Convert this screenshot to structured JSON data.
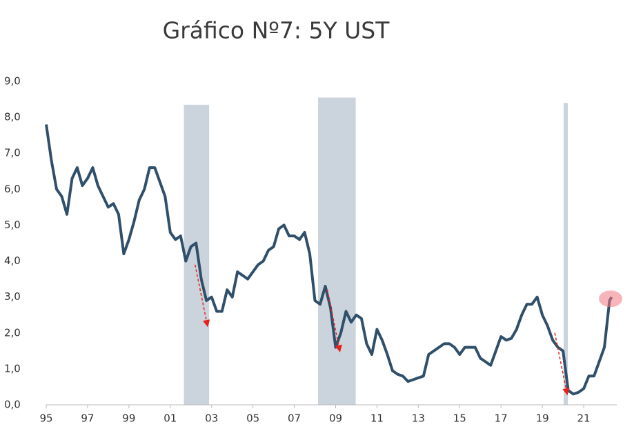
{
  "chart_data": {
    "type": "line",
    "title": "Gráfico Nº7: 5Y UST",
    "color": "#2f4f6a",
    "x": [
      1995.0,
      1995.25,
      1995.5,
      1995.75,
      1996.0,
      1996.25,
      1996.5,
      1996.75,
      1997.0,
      1997.25,
      1997.5,
      1997.75,
      1998.0,
      1998.25,
      1998.5,
      1998.75,
      1999.0,
      1999.25,
      1999.5,
      1999.75,
      2000.0,
      2000.25,
      2000.5,
      2000.75,
      2001.0,
      2001.25,
      2001.5,
      2001.75,
      2002.0,
      2002.25,
      2002.5,
      2002.75,
      2003.0,
      2003.25,
      2003.5,
      2003.75,
      2004.0,
      2004.25,
      2004.5,
      2004.75,
      2005.0,
      2005.25,
      2005.5,
      2005.75,
      2006.0,
      2006.25,
      2006.5,
      2006.75,
      2007.0,
      2007.25,
      2007.5,
      2007.75,
      2008.0,
      2008.25,
      2008.5,
      2008.75,
      2009.0,
      2009.25,
      2009.5,
      2009.75,
      2010.0,
      2010.25,
      2010.5,
      2010.75,
      2011.0,
      2011.25,
      2011.5,
      2011.75,
      2012.0,
      2012.25,
      2012.5,
      2012.75,
      2013.0,
      2013.25,
      2013.5,
      2013.75,
      2014.0,
      2014.25,
      2014.5,
      2014.75,
      2015.0,
      2015.25,
      2015.5,
      2015.75,
      2016.0,
      2016.25,
      2016.5,
      2016.75,
      2017.0,
      2017.25,
      2017.5,
      2017.75,
      2018.0,
      2018.25,
      2018.5,
      2018.75,
      2019.0,
      2019.25,
      2019.5,
      2019.75,
      2020.0,
      2020.25,
      2020.5,
      2020.75,
      2021.0,
      2021.25,
      2021.5,
      2021.75,
      2022.0,
      2022.25,
      2022.35
    ],
    "values": [
      7.8,
      6.8,
      6.0,
      5.8,
      5.3,
      6.3,
      6.6,
      6.1,
      6.3,
      6.6,
      6.1,
      5.8,
      5.5,
      5.6,
      5.3,
      4.2,
      4.6,
      5.1,
      5.7,
      6.0,
      6.6,
      6.6,
      6.2,
      5.8,
      4.8,
      4.6,
      4.7,
      4.0,
      4.4,
      4.5,
      3.5,
      2.9,
      3.0,
      2.6,
      2.6,
      3.2,
      3.0,
      3.7,
      3.6,
      3.5,
      3.7,
      3.9,
      4.0,
      4.3,
      4.4,
      4.9,
      5.0,
      4.7,
      4.7,
      4.6,
      4.8,
      4.2,
      2.9,
      2.8,
      3.3,
      2.7,
      1.6,
      2.0,
      2.6,
      2.3,
      2.5,
      2.4,
      1.7,
      1.4,
      2.1,
      1.8,
      1.4,
      0.95,
      0.85,
      0.8,
      0.65,
      0.7,
      0.75,
      0.8,
      1.4,
      1.5,
      1.6,
      1.7,
      1.7,
      1.6,
      1.4,
      1.6,
      1.6,
      1.6,
      1.3,
      1.2,
      1.1,
      1.5,
      1.9,
      1.8,
      1.85,
      2.1,
      2.5,
      2.8,
      2.8,
      3.0,
      2.5,
      2.2,
      1.8,
      1.6,
      1.5,
      0.4,
      0.3,
      0.35,
      0.45,
      0.8,
      0.8,
      1.2,
      1.6,
      2.9,
      3.0
    ],
    "xlim": [
      1995,
      2022.6
    ],
    "xticks": [
      {
        "value": 1995,
        "label": "95"
      },
      {
        "value": 1997,
        "label": "97"
      },
      {
        "value": 1999,
        "label": "99"
      },
      {
        "value": 2001,
        "label": "01"
      },
      {
        "value": 2003,
        "label": "03"
      },
      {
        "value": 2005,
        "label": "05"
      },
      {
        "value": 2007,
        "label": "07"
      },
      {
        "value": 2009,
        "label": "09"
      },
      {
        "value": 2011,
        "label": "11"
      },
      {
        "value": 2013,
        "label": "13"
      },
      {
        "value": 2015,
        "label": "15"
      },
      {
        "value": 2017,
        "label": "17"
      },
      {
        "value": 2019,
        "label": "19"
      },
      {
        "value": 2021,
        "label": "21"
      }
    ],
    "ylim": [
      0,
      9
    ],
    "yticks": [
      {
        "value": 0,
        "label": "0,0"
      },
      {
        "value": 1,
        "label": "1,0"
      },
      {
        "value": 2,
        "label": "2,0"
      },
      {
        "value": 3,
        "label": "3,0"
      },
      {
        "value": 4,
        "label": "4,0"
      },
      {
        "value": 5,
        "label": "5,0"
      },
      {
        "value": 6,
        "label": "6,0"
      },
      {
        "value": 7,
        "label": "7,0"
      },
      {
        "value": 8,
        "label": "8,0"
      },
      {
        "value": 9,
        "label": "9,0"
      }
    ],
    "shaded_periods": [
      {
        "start": 2001.66,
        "end": 2002.88,
        "top": 8.35
      },
      {
        "start": 2008.15,
        "end": 2009.97,
        "top": 8.55
      },
      {
        "start": 2020.03,
        "end": 2020.23,
        "top": 8.4
      }
    ],
    "arrows": [
      {
        "x": [
          2002.2,
          2002.8
        ],
        "y": [
          3.9,
          2.2
        ]
      },
      {
        "x": [
          2008.6,
          2009.2
        ],
        "y": [
          3.2,
          1.5
        ]
      },
      {
        "x": [
          2019.6,
          2020.2
        ],
        "y": [
          2.0,
          0.3
        ]
      }
    ],
    "highlight": {
      "x": 2022.3,
      "y": 2.95
    }
  }
}
